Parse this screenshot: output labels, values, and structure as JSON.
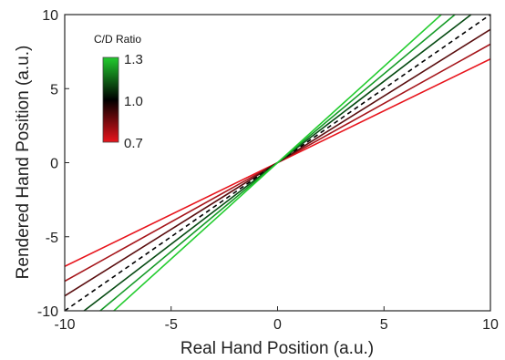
{
  "chart_data": {
    "type": "line",
    "xlabel": "Real Hand Position (a.u.)",
    "ylabel": "Rendered Hand Position (a.u.)",
    "xlim": [
      -10,
      10
    ],
    "ylim": [
      -10,
      10
    ],
    "xticks": [
      -10,
      -5,
      0,
      5,
      10
    ],
    "yticks": [
      -10,
      -5,
      0,
      5,
      10
    ],
    "grid": false,
    "series": [
      {
        "slope": 0.7,
        "color": "#e8141c",
        "dashed": false
      },
      {
        "slope": 0.8,
        "color": "#a6151a",
        "dashed": false
      },
      {
        "slope": 0.9,
        "color": "#5a0e0f",
        "dashed": false
      },
      {
        "slope": 1.0,
        "color": "#000000",
        "dashed": true
      },
      {
        "slope": 1.1,
        "color": "#064a12",
        "dashed": false
      },
      {
        "slope": 1.2,
        "color": "#149a26",
        "dashed": false
      },
      {
        "slope": 1.3,
        "color": "#22cc2e",
        "dashed": false
      }
    ],
    "colorbar": {
      "title": "C/D Ratio",
      "ticks": [
        "1.3",
        "1.0",
        "0.7"
      ],
      "range": [
        0.7,
        1.3
      ],
      "colors": [
        "#22cc2e",
        "#000000",
        "#e8141c"
      ],
      "placement": "top-left"
    }
  }
}
